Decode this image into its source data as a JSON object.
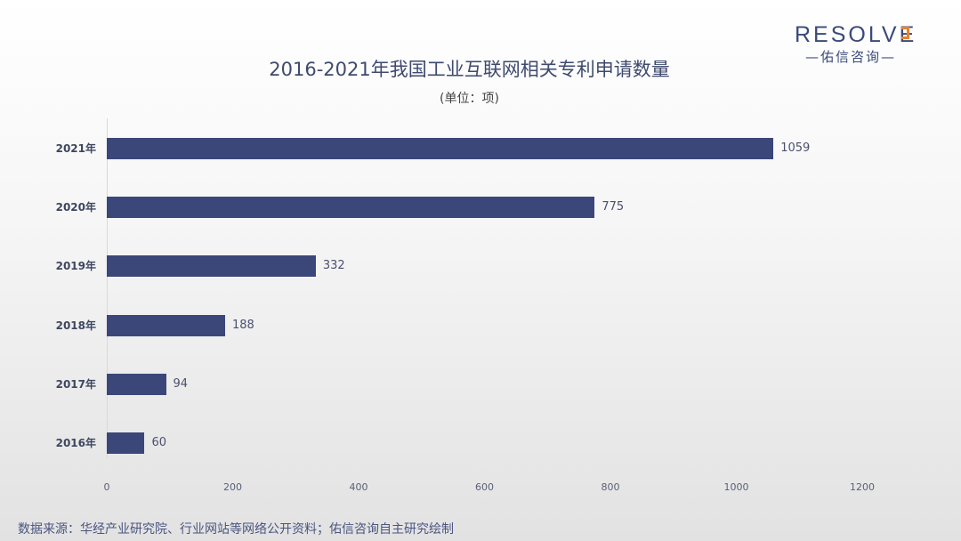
{
  "logo": {
    "word": "RESOLVE",
    "sub": "—佑信咨询—"
  },
  "header": {
    "title": "2016-2021年我国工业互联网相关专利申请数量",
    "subtitle": "(单位：项)"
  },
  "source": "数据来源：华经产业研究院、行业网站等网络公开资料；佑信咨询自主研究绘制",
  "colors": {
    "bar": "#3b4779",
    "logo_accent": "#e8832a",
    "text": "#3e4a6e"
  },
  "chart_data": {
    "type": "bar",
    "orientation": "horizontal",
    "title": "2016-2021年我国工业互联网相关专利申请数量",
    "subtitle": "(单位：项)",
    "categories": [
      "2021年",
      "2020年",
      "2019年",
      "2018年",
      "2017年",
      "2016年"
    ],
    "values": [
      1059,
      775,
      332,
      188,
      94,
      60
    ],
    "xlabel": "",
    "ylabel": "",
    "xlim": [
      0,
      1200
    ],
    "xticks": [
      "0",
      "200",
      "400",
      "600",
      "800",
      "1000",
      "1200"
    ],
    "grid": false,
    "legend": null,
    "data_labels": true
  }
}
